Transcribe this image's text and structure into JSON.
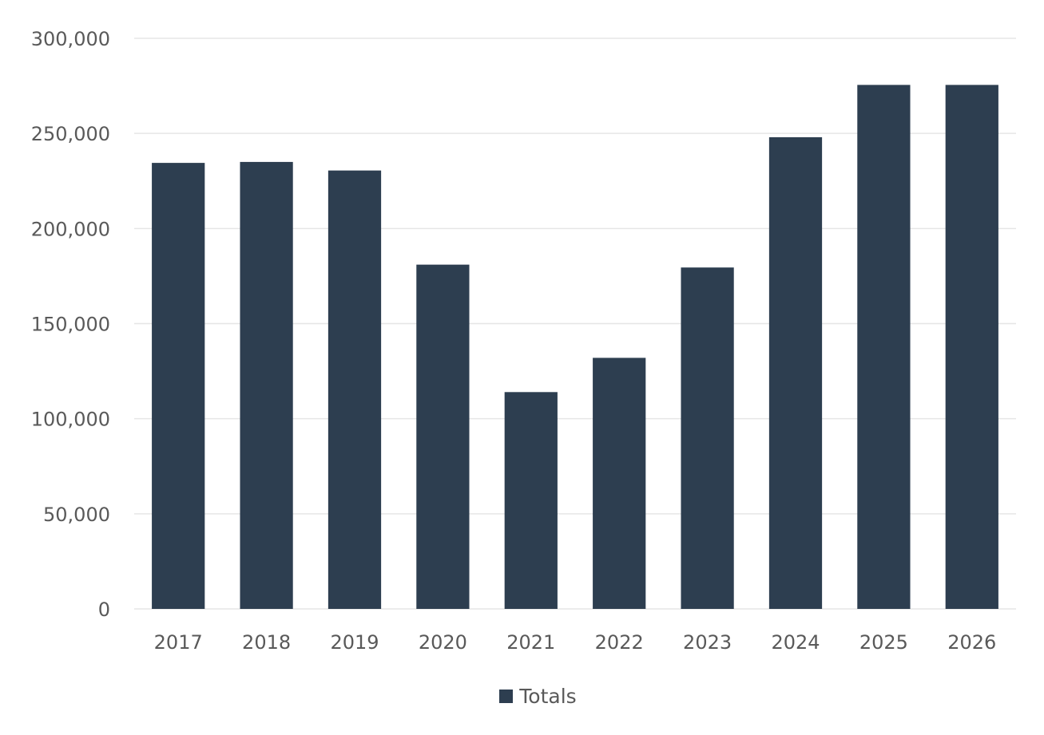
{
  "chart_data": {
    "type": "bar",
    "categories": [
      "2017",
      "2018",
      "2019",
      "2020",
      "2021",
      "2022",
      "2023",
      "2024",
      "2025",
      "2026"
    ],
    "series": [
      {
        "name": "Totals",
        "values": [
          234500,
          235000,
          230500,
          181000,
          114000,
          132000,
          179500,
          248000,
          275500,
          275500
        ]
      }
    ],
    "ylim": [
      0,
      300000
    ],
    "yticks": [
      "0",
      "50,000",
      "100,000",
      "150,000",
      "200,000",
      "250,000",
      "300,000"
    ],
    "ytick_values": [
      0,
      50000,
      100000,
      150000,
      200000,
      250000,
      300000
    ],
    "title": "",
    "xlabel": "",
    "ylabel": "",
    "grid": true,
    "legend_position": "bottom",
    "colors": {
      "bar": "#2d3e50",
      "grid": "#e6e6e6",
      "text": "#595959"
    }
  }
}
